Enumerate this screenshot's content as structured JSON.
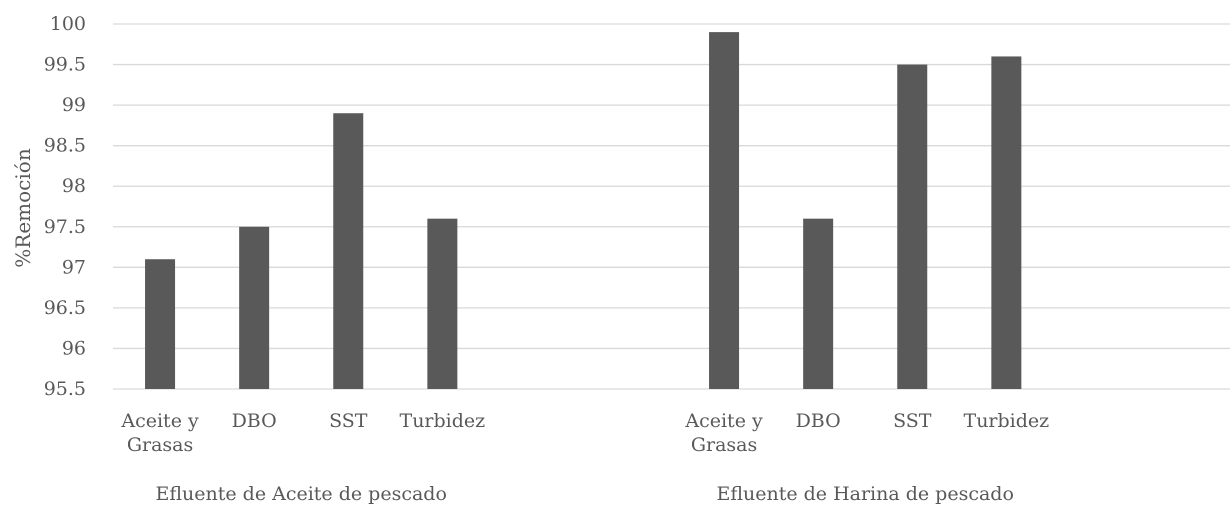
{
  "chart_data": {
    "type": "bar",
    "title": "",
    "xlabel": "",
    "ylabel": "%Remoción",
    "ylim": [
      95.5,
      100
    ],
    "yticks": [
      "95.5",
      "96",
      "96.5",
      "97",
      "97.5",
      "98",
      "98.5",
      "99",
      "99.5",
      "100"
    ],
    "grid": true,
    "legend": "none",
    "bar_color": "#595959",
    "groups": [
      {
        "name": "Efluente de Aceite de pescado",
        "categories": [
          "Aceite y Grasas",
          "DBO",
          "SST",
          "Turbidez"
        ],
        "values": [
          97.1,
          97.5,
          98.9,
          97.6
        ]
      },
      {
        "name": "Efluente de Harina de pescado",
        "categories": [
          "Aceite y Grasas",
          "DBO",
          "SST",
          "Turbidez"
        ],
        "values": [
          99.9,
          97.6,
          99.5,
          99.6
        ]
      }
    ]
  }
}
